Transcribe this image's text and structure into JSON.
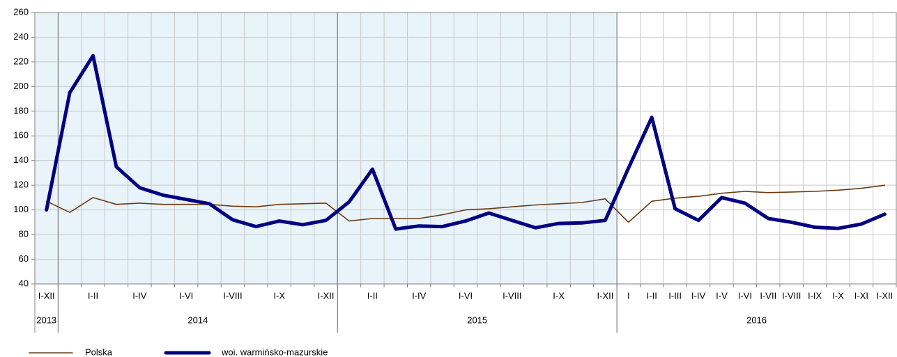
{
  "chart_data": {
    "type": "line",
    "categories": [
      "I-XII",
      null,
      "I-II",
      null,
      "I-IV",
      null,
      "I-VI",
      null,
      "I-VIII",
      null,
      "I-X",
      null,
      "I-XII",
      null,
      "I-II",
      null,
      "I-IV",
      null,
      "I-VI",
      null,
      "I-VIII",
      null,
      "I-X",
      null,
      "I-XII",
      "I",
      "I-II",
      "I-III",
      "I-IV",
      "I-V",
      "I-VI",
      "I-VII",
      "I-VIII",
      "I-IX",
      "I-X",
      "I-XI",
      "I-XII"
    ],
    "x_groups": [
      {
        "label": "2013",
        "start": 0,
        "end": 0
      },
      {
        "label": "2014",
        "start": 1,
        "end": 12
      },
      {
        "label": "2015",
        "start": 13,
        "end": 24
      },
      {
        "label": "2016",
        "start": 25,
        "end": 36
      }
    ],
    "series": [
      {
        "name": "Polska",
        "color": "#6b3a12",
        "width": 1.6,
        "values": [
          107,
          98,
          110,
          104.5,
          105.5,
          104.5,
          104.5,
          104.5,
          103,
          102.5,
          104.5,
          105,
          105.5,
          91,
          93,
          93,
          93,
          96,
          100,
          101,
          102.5,
          104,
          105,
          106,
          109,
          90,
          107,
          109.5,
          111,
          113.5,
          115,
          114,
          114.5,
          115,
          116,
          117.5,
          120
        ]
      },
      {
        "name": "woi. warmińsko-mazurskie",
        "color": "#000080",
        "width": 5,
        "values": [
          100,
          195,
          225,
          135,
          118,
          112,
          108.5,
          105,
          92,
          86.5,
          91,
          88,
          91.5,
          106.5,
          133,
          84.5,
          87,
          86.5,
          91,
          97.5,
          91.5,
          85.5,
          89,
          89.5,
          91.5,
          134,
          175,
          101,
          91.5,
          110,
          105.5,
          93,
          90,
          86,
          85,
          88.5,
          96.5
        ]
      }
    ],
    "ylim": [
      40,
      260
    ],
    "yticks": [
      40,
      60,
      80,
      100,
      120,
      140,
      160,
      180,
      200,
      220,
      240,
      260
    ],
    "grid": true
  }
}
